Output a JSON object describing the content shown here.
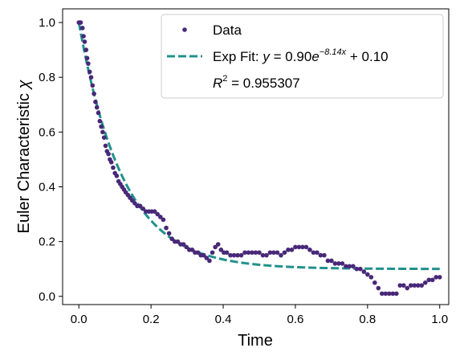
{
  "chart_data": {
    "type": "scatter",
    "xlabel": "Time",
    "ylabel_text": "Euler Characteristic",
    "ylabel_symbol": "χ",
    "xlim": [
      -0.045,
      1.025
    ],
    "ylim": [
      -0.03,
      1.05
    ],
    "xticks": [
      "0.0",
      "0.2",
      "0.4",
      "0.6",
      "0.8",
      "1.0"
    ],
    "yticks": [
      "0.0",
      "0.2",
      "0.4",
      "0.6",
      "0.8",
      "1.0"
    ],
    "grid": false,
    "legend_position": "top-right",
    "colors": {
      "data": "#482878",
      "fit": "#21918c"
    },
    "series": [
      {
        "name": "Data",
        "kind": "scatter",
        "points": [
          [
            0.0,
            1.0
          ],
          [
            0.005,
            1.0
          ],
          [
            0.01,
            0.98
          ],
          [
            0.013,
            0.95
          ],
          [
            0.016,
            0.93
          ],
          [
            0.02,
            0.9
          ],
          [
            0.023,
            0.87
          ],
          [
            0.026,
            0.85
          ],
          [
            0.03,
            0.82
          ],
          [
            0.034,
            0.8
          ],
          [
            0.038,
            0.77
          ],
          [
            0.042,
            0.74
          ],
          [
            0.046,
            0.71
          ],
          [
            0.05,
            0.69
          ],
          [
            0.054,
            0.67
          ],
          [
            0.058,
            0.64
          ],
          [
            0.062,
            0.62
          ],
          [
            0.066,
            0.6
          ],
          [
            0.07,
            0.58
          ],
          [
            0.074,
            0.55
          ],
          [
            0.078,
            0.53
          ],
          [
            0.082,
            0.52
          ],
          [
            0.086,
            0.5
          ],
          [
            0.09,
            0.49
          ],
          [
            0.095,
            0.47
          ],
          [
            0.1,
            0.45
          ],
          [
            0.105,
            0.44
          ],
          [
            0.11,
            0.42
          ],
          [
            0.115,
            0.41
          ],
          [
            0.12,
            0.4
          ],
          [
            0.125,
            0.39
          ],
          [
            0.13,
            0.38
          ],
          [
            0.136,
            0.37
          ],
          [
            0.142,
            0.36
          ],
          [
            0.148,
            0.35
          ],
          [
            0.155,
            0.34
          ],
          [
            0.162,
            0.33
          ],
          [
            0.17,
            0.33
          ],
          [
            0.178,
            0.32
          ],
          [
            0.186,
            0.31
          ],
          [
            0.194,
            0.31
          ],
          [
            0.202,
            0.31
          ],
          [
            0.21,
            0.31
          ],
          [
            0.218,
            0.3
          ],
          [
            0.226,
            0.29
          ],
          [
            0.234,
            0.28
          ],
          [
            0.242,
            0.25
          ],
          [
            0.25,
            0.23
          ],
          [
            0.258,
            0.21
          ],
          [
            0.266,
            0.2
          ],
          [
            0.274,
            0.2
          ],
          [
            0.282,
            0.19
          ],
          [
            0.29,
            0.19
          ],
          [
            0.298,
            0.18
          ],
          [
            0.306,
            0.17
          ],
          [
            0.314,
            0.17
          ],
          [
            0.322,
            0.16
          ],
          [
            0.33,
            0.16
          ],
          [
            0.338,
            0.15
          ],
          [
            0.346,
            0.15
          ],
          [
            0.354,
            0.14
          ],
          [
            0.362,
            0.13
          ],
          [
            0.37,
            0.16
          ],
          [
            0.378,
            0.18
          ],
          [
            0.386,
            0.19
          ],
          [
            0.394,
            0.17
          ],
          [
            0.402,
            0.16
          ],
          [
            0.41,
            0.16
          ],
          [
            0.42,
            0.15
          ],
          [
            0.43,
            0.15
          ],
          [
            0.44,
            0.15
          ],
          [
            0.45,
            0.15
          ],
          [
            0.46,
            0.16
          ],
          [
            0.47,
            0.16
          ],
          [
            0.48,
            0.16
          ],
          [
            0.49,
            0.16
          ],
          [
            0.5,
            0.16
          ],
          [
            0.51,
            0.15
          ],
          [
            0.52,
            0.15
          ],
          [
            0.53,
            0.16
          ],
          [
            0.54,
            0.16
          ],
          [
            0.55,
            0.16
          ],
          [
            0.56,
            0.15
          ],
          [
            0.57,
            0.16
          ],
          [
            0.58,
            0.17
          ],
          [
            0.59,
            0.17
          ],
          [
            0.6,
            0.18
          ],
          [
            0.61,
            0.18
          ],
          [
            0.62,
            0.18
          ],
          [
            0.63,
            0.18
          ],
          [
            0.64,
            0.17
          ],
          [
            0.65,
            0.16
          ],
          [
            0.66,
            0.16
          ],
          [
            0.67,
            0.15
          ],
          [
            0.68,
            0.15
          ],
          [
            0.69,
            0.13
          ],
          [
            0.7,
            0.13
          ],
          [
            0.71,
            0.12
          ],
          [
            0.72,
            0.12
          ],
          [
            0.73,
            0.12
          ],
          [
            0.74,
            0.11
          ],
          [
            0.75,
            0.11
          ],
          [
            0.76,
            0.11
          ],
          [
            0.77,
            0.1
          ],
          [
            0.78,
            0.1
          ],
          [
            0.79,
            0.09
          ],
          [
            0.8,
            0.08
          ],
          [
            0.81,
            0.07
          ],
          [
            0.82,
            0.05
          ],
          [
            0.83,
            0.03
          ],
          [
            0.84,
            0.01
          ],
          [
            0.85,
            0.01
          ],
          [
            0.86,
            0.01
          ],
          [
            0.87,
            0.01
          ],
          [
            0.88,
            0.01
          ],
          [
            0.89,
            0.04
          ],
          [
            0.9,
            0.04
          ],
          [
            0.91,
            0.03
          ],
          [
            0.92,
            0.04
          ],
          [
            0.93,
            0.04
          ],
          [
            0.94,
            0.04
          ],
          [
            0.95,
            0.04
          ],
          [
            0.96,
            0.05
          ],
          [
            0.97,
            0.06
          ],
          [
            0.98,
            0.06
          ],
          [
            0.99,
            0.07
          ],
          [
            1.0,
            0.07
          ]
        ]
      },
      {
        "name": "Exp Fit",
        "kind": "line",
        "style": "dashed",
        "model": {
          "a": 0.9,
          "b": 8.14,
          "c": 0.1
        }
      }
    ],
    "legend": {
      "data_label": "Data",
      "fit_label_prefix": "Exp Fit:",
      "fit_eq_lhs": "y",
      "fit_eq_a": "0.90",
      "fit_eq_base": "e",
      "fit_eq_exp": "−8.14x",
      "fit_eq_c": "+ 0.10",
      "r2_label": "R",
      "r2_exp": "2",
      "r2_value": "0.955307"
    }
  }
}
